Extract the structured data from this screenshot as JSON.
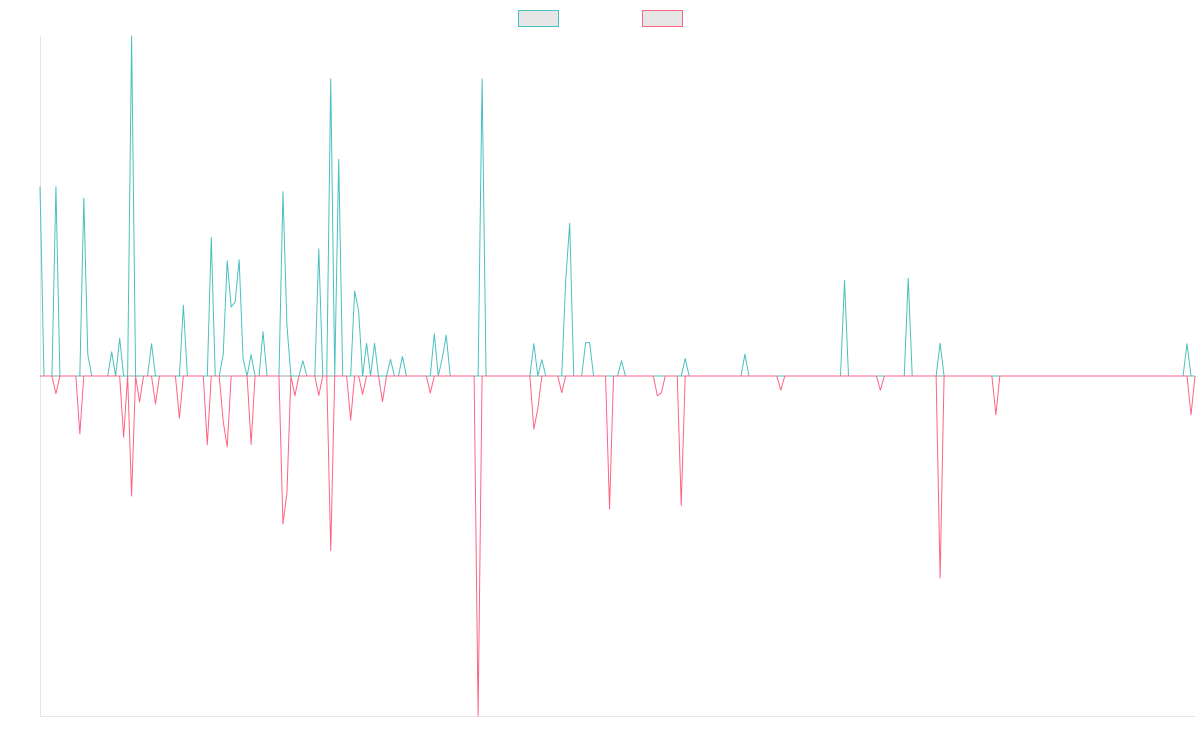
{
  "chart_data": {
    "type": "line",
    "title": "",
    "xlabel": "",
    "ylabel": "",
    "grid": false,
    "legend_position": "top",
    "ylim": [
      -100,
      100
    ],
    "x_count": 291,
    "series": [
      {
        "name": "",
        "color": "#4bc0c0",
        "legend_fill": "#e6e6e6",
        "points": [
          [
            0,
            55.7
          ],
          [
            4,
            55.7
          ],
          [
            11,
            52.3
          ],
          [
            12,
            6.3
          ],
          [
            18,
            7.1
          ],
          [
            20,
            11.1
          ],
          [
            23,
            100
          ],
          [
            28,
            9.5
          ],
          [
            36,
            20.8
          ],
          [
            43,
            40.7
          ],
          [
            46,
            6.4
          ],
          [
            47,
            33.9
          ],
          [
            48,
            20.3
          ],
          [
            49,
            21.8
          ],
          [
            50,
            34.2
          ],
          [
            51,
            4.9
          ],
          [
            53,
            6.3
          ],
          [
            56,
            13.0
          ],
          [
            61,
            54.2
          ],
          [
            62,
            14.9
          ],
          [
            66,
            4.5
          ],
          [
            70,
            37.4
          ],
          [
            73,
            87.4
          ],
          [
            75,
            63.7
          ],
          [
            79,
            25.0
          ],
          [
            80,
            19.2
          ],
          [
            82,
            9.6
          ],
          [
            84,
            9.6
          ],
          [
            88,
            4.9
          ],
          [
            91,
            5.7
          ],
          [
            99,
            12.4
          ],
          [
            101,
            5.2
          ],
          [
            102,
            12.0
          ],
          [
            111,
            87.4
          ],
          [
            124,
            9.5
          ],
          [
            126,
            4.8
          ],
          [
            132,
            28.1
          ],
          [
            133,
            44.9
          ],
          [
            137,
            9.8
          ],
          [
            138,
            9.8
          ],
          [
            146,
            4.5
          ],
          [
            162,
            5.1
          ],
          [
            177,
            6.4
          ],
          [
            202,
            28.1
          ],
          [
            218,
            28.8
          ],
          [
            226,
            9.6
          ],
          [
            288,
            9.5
          ]
        ]
      },
      {
        "name": "",
        "color": "#ff6384",
        "legend_fill": "#e6e6e6",
        "points": [
          [
            4,
            -5.2
          ],
          [
            10,
            -17.0
          ],
          [
            21,
            -18.0
          ],
          [
            23,
            -35.3
          ],
          [
            25,
            -7.6
          ],
          [
            29,
            -8.2
          ],
          [
            35,
            -12.4
          ],
          [
            42,
            -20.2
          ],
          [
            46,
            -13.4
          ],
          [
            47,
            -20.8
          ],
          [
            53,
            -20.1
          ],
          [
            61,
            -43.5
          ],
          [
            62,
            -34.5
          ],
          [
            64,
            -5.8
          ],
          [
            70,
            -5.7
          ],
          [
            73,
            -51.4
          ],
          [
            78,
            -13.0
          ],
          [
            81,
            -5.4
          ],
          [
            86,
            -7.5
          ],
          [
            98,
            -5.0
          ],
          [
            110,
            -100
          ],
          [
            124,
            -15.6
          ],
          [
            125,
            -9.6
          ],
          [
            131,
            -4.9
          ],
          [
            143,
            -39.1
          ],
          [
            155,
            -5.8
          ],
          [
            156,
            -5.0
          ],
          [
            161,
            -38.1
          ],
          [
            186,
            -4.2
          ],
          [
            211,
            -4.2
          ],
          [
            226,
            -59.4
          ],
          [
            240,
            -11.4
          ],
          [
            289,
            -11.4
          ]
        ]
      }
    ]
  }
}
